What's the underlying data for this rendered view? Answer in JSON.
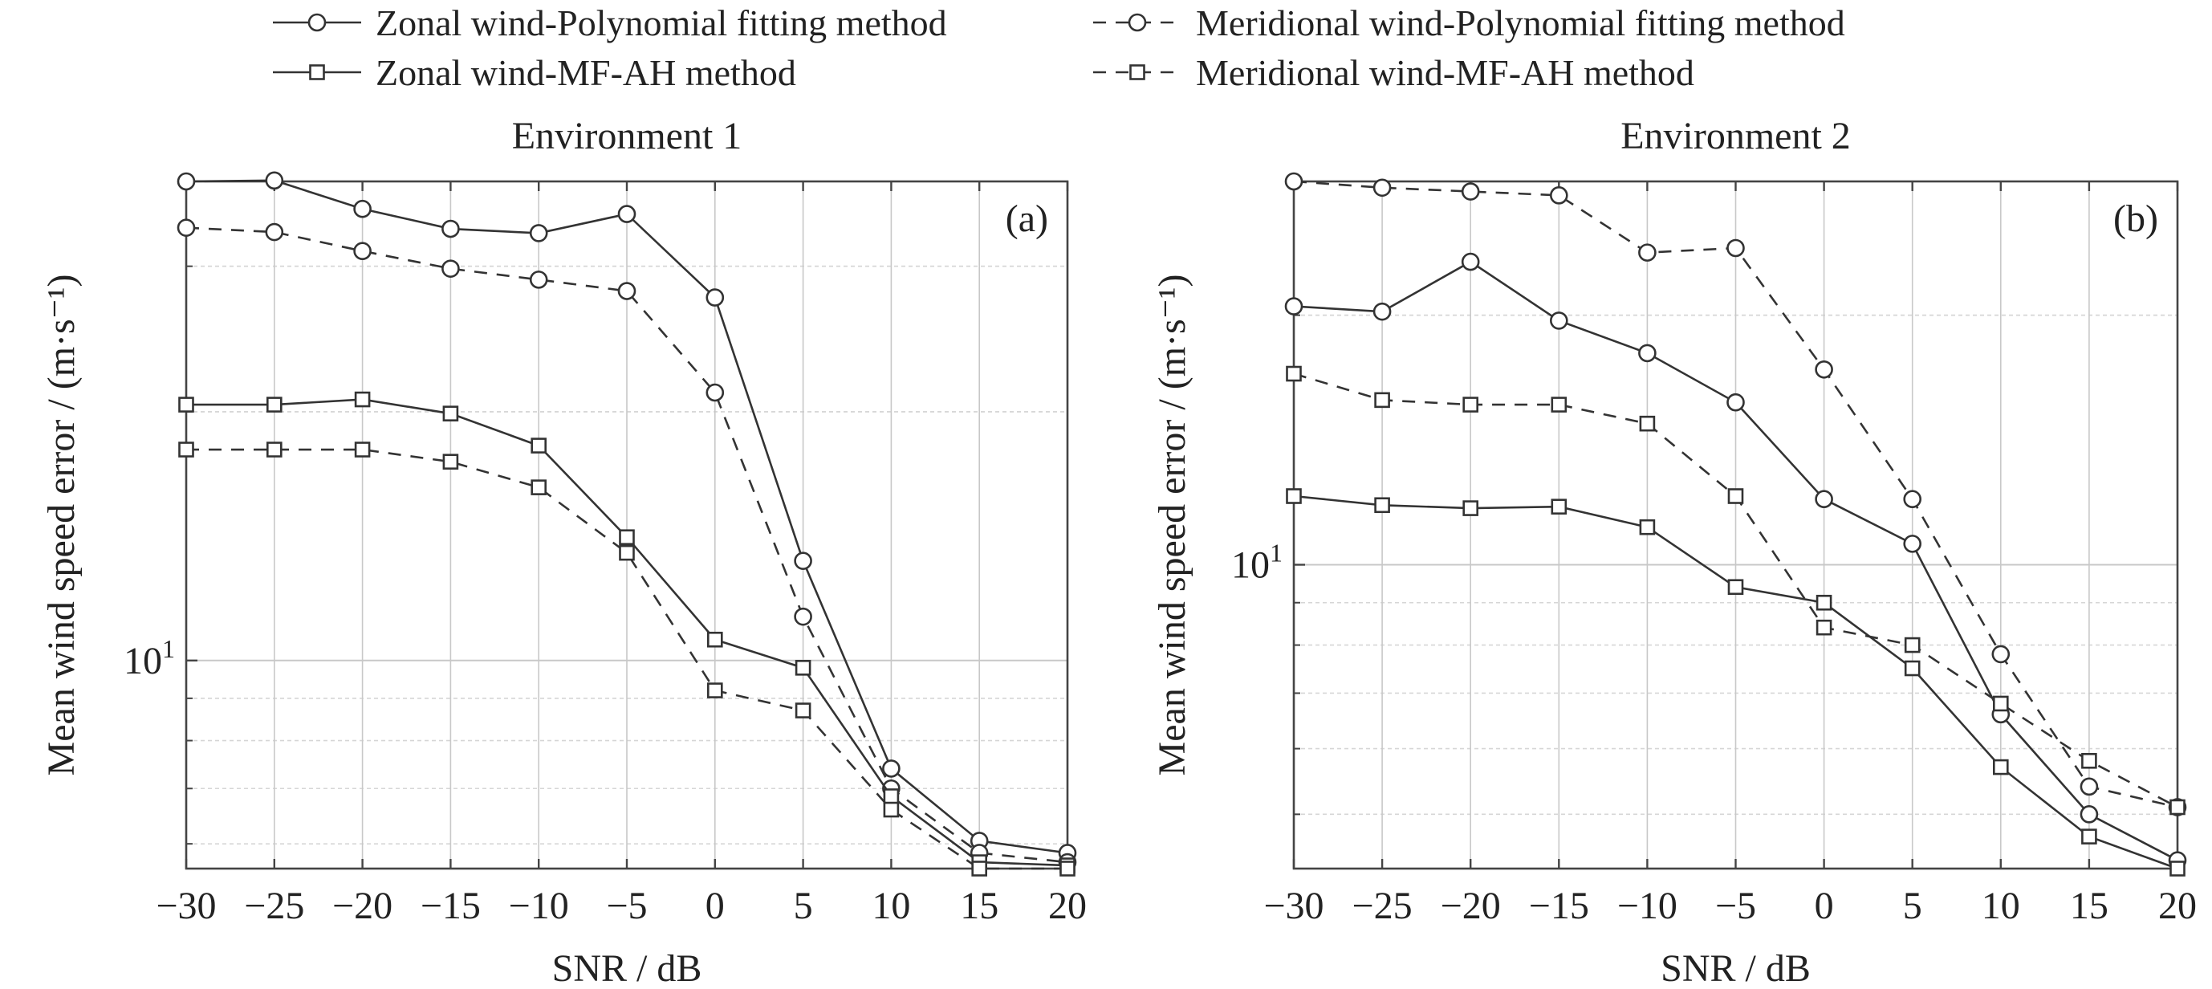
{
  "legend": {
    "entries": [
      {
        "label": "Zonal wind-Polynomial fitting method",
        "style": "solid",
        "marker": "circle"
      },
      {
        "label": "Meridional wind-Polynomial fitting method",
        "style": "dashed",
        "marker": "circle"
      },
      {
        "label": "Zonal wind-MF-AH method",
        "style": "solid",
        "marker": "square"
      },
      {
        "label": "Meridional wind-MF-AH method",
        "style": "dashed",
        "marker": "square"
      }
    ]
  },
  "colors": {
    "line": "#333333",
    "grid_major": "#c8c8c8",
    "grid_minor": "#d6d6d6",
    "axis": "#444444"
  },
  "chart_data": [
    {
      "type": "line",
      "title": "Environment 1",
      "panel_label": "(a)",
      "xlabel": "SNR / dB",
      "ylabel": "Mean wind speed error / (m·s⁻¹)",
      "yscale": "log",
      "xlim": [
        -30,
        20
      ],
      "ylim": [
        5.6,
        38
      ],
      "x": [
        -30,
        -25,
        -20,
        -15,
        -10,
        -5,
        0,
        5,
        10,
        15,
        20
      ],
      "xticks": [
        "−30",
        "−25",
        "−20",
        "−15",
        "−10",
        "−5",
        "0",
        "5",
        "10",
        "15",
        "20"
      ],
      "ytick_label": "10",
      "ytick_exp": "1",
      "grid": true,
      "series": [
        {
          "name": "Zonal wind-Polynomial fitting method",
          "style": "solid",
          "marker": "circle",
          "values": [
            38.0,
            38.1,
            35.2,
            33.3,
            32.9,
            34.7,
            27.5,
            13.2,
            7.4,
            6.05,
            5.85
          ]
        },
        {
          "name": "Meridional wind-Polynomial fitting method",
          "style": "dashed",
          "marker": "circle",
          "values": [
            33.4,
            33.0,
            31.3,
            29.8,
            28.9,
            28.0,
            21.1,
            11.3,
            7.0,
            5.85,
            5.7
          ]
        },
        {
          "name": "Zonal wind-MF-AH method",
          "style": "solid",
          "marker": "square",
          "values": [
            20.4,
            20.4,
            20.7,
            19.9,
            18.2,
            14.1,
            10.6,
            9.8,
            6.85,
            5.7,
            5.65
          ]
        },
        {
          "name": "Meridional wind-MF-AH method",
          "style": "dashed",
          "marker": "square",
          "values": [
            18.0,
            18.0,
            18.0,
            17.4,
            16.2,
            13.5,
            9.2,
            8.7,
            6.6,
            5.6,
            5.6
          ]
        }
      ]
    },
    {
      "type": "line",
      "title": "Environment 2",
      "panel_label": "(b)",
      "xlabel": "SNR / dB",
      "ylabel": "Mean wind speed error / (m·s⁻¹)",
      "yscale": "log",
      "xlim": [
        -30,
        20
      ],
      "ylim": [
        4.3,
        29
      ],
      "x": [
        -30,
        -25,
        -20,
        -15,
        -10,
        -5,
        0,
        5,
        10,
        15,
        20
      ],
      "xticks": [
        "−30",
        "−25",
        "−20",
        "−15",
        "−10",
        "−5",
        "0",
        "5",
        "10",
        "15",
        "20"
      ],
      "ytick_label": "10",
      "ytick_exp": "1",
      "grid": true,
      "series": [
        {
          "name": "Zonal wind-Polynomial fitting method",
          "style": "solid",
          "marker": "circle",
          "values": [
            20.5,
            20.2,
            23.2,
            19.7,
            18.0,
            15.7,
            12.0,
            10.6,
            6.6,
            5.0,
            4.4
          ]
        },
        {
          "name": "Meridional wind-Polynomial fitting method",
          "style": "dashed",
          "marker": "circle",
          "values": [
            29.0,
            28.5,
            28.2,
            27.9,
            23.8,
            24.1,
            17.2,
            12.0,
            7.8,
            5.4,
            5.1
          ]
        },
        {
          "name": "Zonal wind-MF-AH method",
          "style": "solid",
          "marker": "square",
          "values": [
            12.1,
            11.8,
            11.7,
            11.75,
            11.1,
            9.4,
            9.0,
            7.5,
            5.7,
            4.7,
            4.3
          ]
        },
        {
          "name": "Meridional wind-MF-AH method",
          "style": "dashed",
          "marker": "square",
          "values": [
            17.0,
            15.8,
            15.6,
            15.6,
            14.8,
            12.1,
            8.4,
            8.0,
            6.8,
            5.8,
            5.1
          ]
        }
      ]
    }
  ]
}
